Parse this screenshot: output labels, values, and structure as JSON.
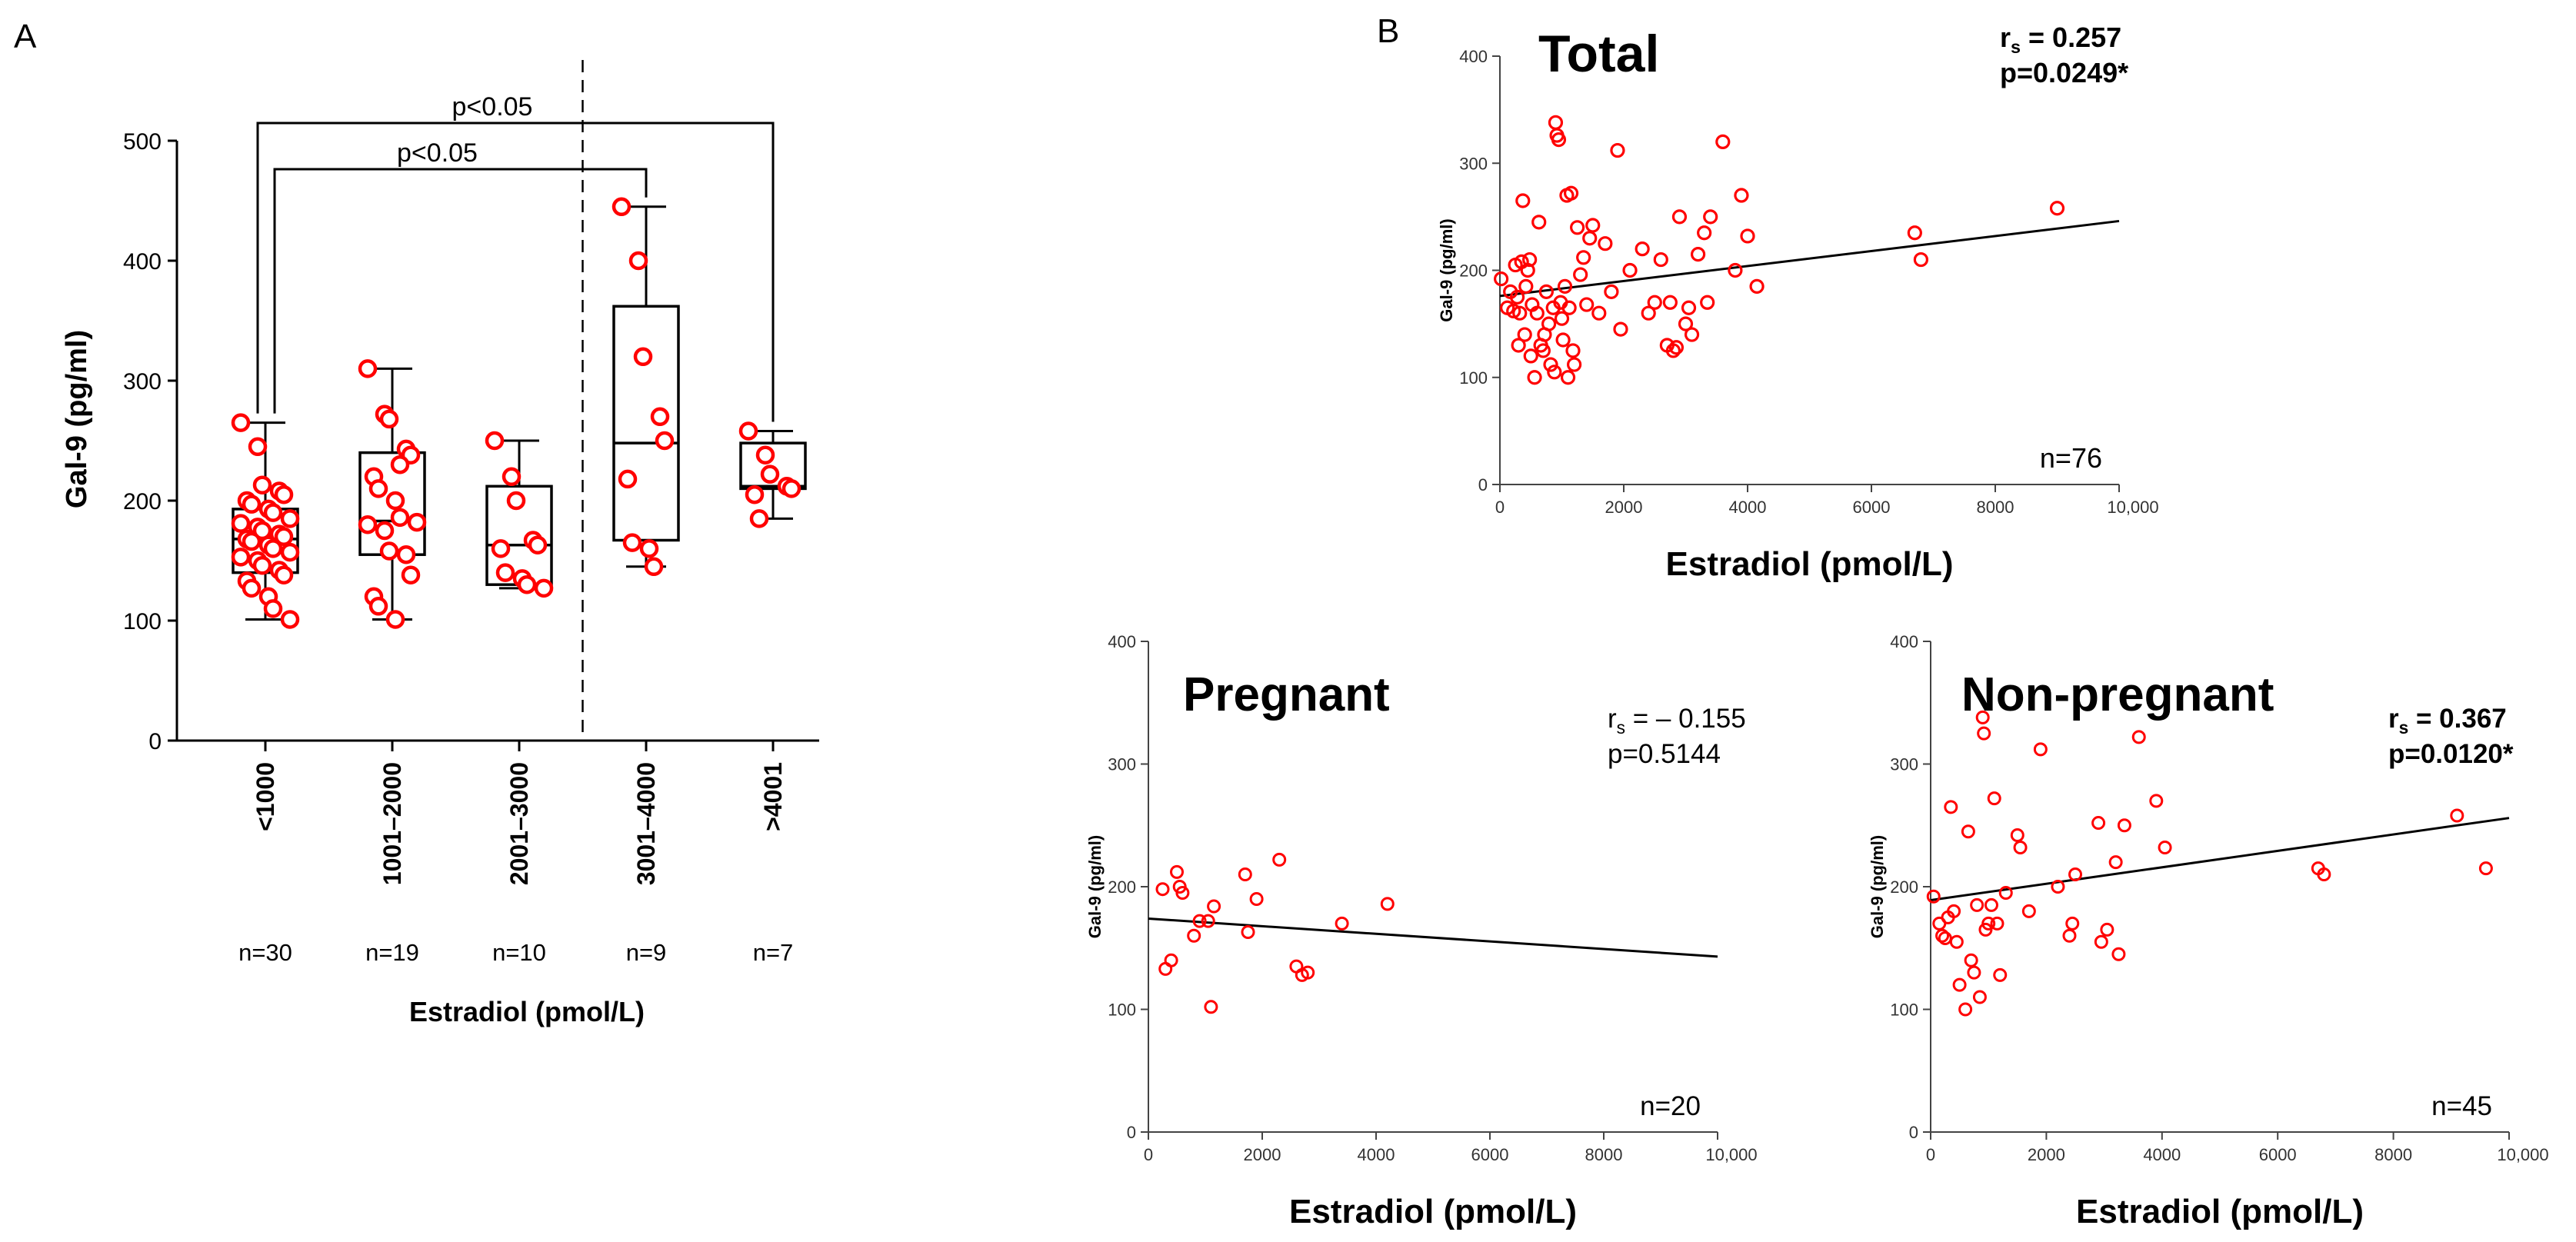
{
  "chart_data": [
    {
      "panel": "A",
      "type": "box",
      "ylabel": "Gal-9 (pg/ml)",
      "xlabel": "Estradiol (pmol/L)",
      "ylim": [
        0,
        500
      ],
      "yticks": [
        0,
        100,
        200,
        300,
        400,
        500
      ],
      "categories": [
        "<1000",
        "1001–2000",
        "2001–3000",
        "3001–4000",
        ">4001"
      ],
      "counts": [
        "n=30",
        "n=19",
        "n=10",
        "n=9",
        "n=7"
      ],
      "boxes": [
        {
          "min": 101,
          "q1": 140,
          "median": 168,
          "q3": 193,
          "max": 265
        },
        {
          "min": 101,
          "q1": 155,
          "median": 183,
          "q3": 240,
          "max": 310
        },
        {
          "min": 127,
          "q1": 130,
          "median": 163,
          "q3": 212,
          "max": 250
        },
        {
          "min": 145,
          "q1": 167,
          "median": 248,
          "q3": 362,
          "max": 445
        },
        {
          "min": 185,
          "q1": 210,
          "median": 212,
          "q3": 248,
          "max": 258
        }
      ],
      "points": [
        [
          265,
          245,
          213,
          208,
          205,
          200,
          197,
          193,
          190,
          185,
          181,
          178,
          175,
          172,
          170,
          168,
          166,
          163,
          160,
          157,
          153,
          150,
          146,
          142,
          138,
          133,
          127,
          120,
          110,
          101
        ],
        [
          310,
          272,
          268,
          243,
          238,
          220,
          210,
          200,
          186,
          182,
          180,
          175,
          158,
          155,
          138,
          120,
          112,
          101,
          230
        ],
        [
          250,
          220,
          200,
          167,
          163,
          160,
          140,
          135,
          130,
          127
        ],
        [
          445,
          400,
          320,
          270,
          250,
          218,
          165,
          160,
          145
        ],
        [
          258,
          238,
          222,
          212,
          210,
          205,
          185
        ]
      ],
      "significance": [
        {
          "label": "p<0.05",
          "from": 0,
          "to": 4
        },
        {
          "label": "p<0.05",
          "from": 0,
          "to": 3
        }
      ],
      "divider_between": [
        2,
        3
      ]
    },
    {
      "panel": "B",
      "type": "scatter",
      "title": "Total",
      "rs_label": "r",
      "rs_sub": "s",
      "rs_value": " = 0.257",
      "p_label": "p=0.0249*",
      "n_label": "n=76",
      "xlabel": "Estradiol (pmol/L)",
      "ylabel": "Gal-9 (pg/ml)",
      "xlim": [
        0,
        10000
      ],
      "ylim": [
        0,
        400
      ],
      "xticks": [
        "0",
        "2000",
        "4000",
        "6000",
        "8000",
        "10,000"
      ],
      "yticks": [
        "0",
        "100",
        "200",
        "300",
        "400"
      ],
      "fit": {
        "x0": 0,
        "y0": 176,
        "x1": 10000,
        "y1": 246
      },
      "points": [
        [
          20,
          192
        ],
        [
          120,
          165
        ],
        [
          170,
          180
        ],
        [
          220,
          162
        ],
        [
          250,
          205
        ],
        [
          280,
          175
        ],
        [
          300,
          130
        ],
        [
          320,
          160
        ],
        [
          350,
          208
        ],
        [
          370,
          265
        ],
        [
          400,
          140
        ],
        [
          420,
          185
        ],
        [
          450,
          200
        ],
        [
          480,
          210
        ],
        [
          500,
          120
        ],
        [
          520,
          168
        ],
        [
          560,
          100
        ],
        [
          600,
          160
        ],
        [
          630,
          245
        ],
        [
          660,
          130
        ],
        [
          700,
          125
        ],
        [
          720,
          140
        ],
        [
          750,
          180
        ],
        [
          790,
          150
        ],
        [
          820,
          112
        ],
        [
          860,
          165
        ],
        [
          880,
          105
        ],
        [
          900,
          338
        ],
        [
          920,
          326
        ],
        [
          950,
          322
        ],
        [
          980,
          170
        ],
        [
          1000,
          155
        ],
        [
          1020,
          135
        ],
        [
          1050,
          185
        ],
        [
          1080,
          270
        ],
        [
          1100,
          100
        ],
        [
          1120,
          165
        ],
        [
          1150,
          272
        ],
        [
          1180,
          125
        ],
        [
          1200,
          112
        ],
        [
          1250,
          240
        ],
        [
          1300,
          196
        ],
        [
          1350,
          212
        ],
        [
          1400,
          168
        ],
        [
          1450,
          230
        ],
        [
          1500,
          242
        ],
        [
          1600,
          160
        ],
        [
          1700,
          225
        ],
        [
          1800,
          180
        ],
        [
          1900,
          312
        ],
        [
          1950,
          145
        ],
        [
          2100,
          200
        ],
        [
          2300,
          220
        ],
        [
          2400,
          160
        ],
        [
          2500,
          170
        ],
        [
          2600,
          210
        ],
        [
          2700,
          130
        ],
        [
          2750,
          170
        ],
        [
          2800,
          125
        ],
        [
          2850,
          128
        ],
        [
          2900,
          250
        ],
        [
          3000,
          150
        ],
        [
          3050,
          165
        ],
        [
          3100,
          140
        ],
        [
          3200,
          215
        ],
        [
          3300,
          235
        ],
        [
          3350,
          170
        ],
        [
          3400,
          250
        ],
        [
          3600,
          320
        ],
        [
          3800,
          200
        ],
        [
          3900,
          270
        ],
        [
          4000,
          232
        ],
        [
          4150,
          185
        ],
        [
          6700,
          235
        ],
        [
          6800,
          210
        ],
        [
          9000,
          258
        ]
      ]
    },
    {
      "panel": "B-pregnant",
      "type": "scatter",
      "title": "Pregnant",
      "rs_label": "r",
      "rs_sub": "s",
      "rs_value": " = – 0.155",
      "p_label": "p=0.5144",
      "n_label": "n=20",
      "xlabel": "Estradiol (pmol/L)",
      "ylabel": "Gal-9 (pg/ml)",
      "xlim": [
        0,
        10000
      ],
      "ylim": [
        0,
        400
      ],
      "xticks": [
        "0",
        "2000",
        "4000",
        "6000",
        "8000",
        "10,000"
      ],
      "yticks": [
        "0",
        "100",
        "200",
        "300",
        "400"
      ],
      "fit": {
        "x0": 0,
        "y0": 174,
        "x1": 10000,
        "y1": 143
      },
      "points": [
        [
          250,
          198
        ],
        [
          300,
          133
        ],
        [
          400,
          140
        ],
        [
          500,
          212
        ],
        [
          550,
          200
        ],
        [
          800,
          160
        ],
        [
          900,
          172
        ],
        [
          1050,
          172
        ],
        [
          1100,
          102
        ],
        [
          1150,
          184
        ],
        [
          1700,
          210
        ],
        [
          1750,
          163
        ],
        [
          1900,
          190
        ],
        [
          2300,
          222
        ],
        [
          2600,
          135
        ],
        [
          2700,
          128
        ],
        [
          2800,
          130
        ],
        [
          3400,
          170
        ],
        [
          4200,
          186
        ],
        [
          600,
          195
        ]
      ]
    },
    {
      "panel": "B-nonpregnant",
      "type": "scatter",
      "title": "Non-pregnant",
      "rs_label": "r",
      "rs_sub": "s",
      "rs_value": " = 0.367",
      "p_label": "p=0.0120*",
      "n_label": "n=45",
      "xlabel": "Estradiol (pmol/L)",
      "ylabel": "Gal-9 (pg/ml)",
      "xlim": [
        0,
        10000
      ],
      "ylim": [
        0,
        400
      ],
      "xticks": [
        "0",
        "2000",
        "4000",
        "6000",
        "8000",
        "10,000"
      ],
      "yticks": [
        "0",
        "100",
        "200",
        "300",
        "400"
      ],
      "fit": {
        "x0": 0,
        "y0": 189,
        "x1": 10000,
        "y1": 256
      },
      "points": [
        [
          50,
          192
        ],
        [
          150,
          170
        ],
        [
          200,
          160
        ],
        [
          250,
          158
        ],
        [
          300,
          175
        ],
        [
          350,
          265
        ],
        [
          400,
          180
        ],
        [
          450,
          155
        ],
        [
          500,
          120
        ],
        [
          600,
          100
        ],
        [
          650,
          245
        ],
        [
          700,
          140
        ],
        [
          750,
          130
        ],
        [
          800,
          185
        ],
        [
          850,
          110
        ],
        [
          900,
          338
        ],
        [
          920,
          325
        ],
        [
          1000,
          170
        ],
        [
          1050,
          185
        ],
        [
          1100,
          272
        ],
        [
          1150,
          170
        ],
        [
          1200,
          128
        ],
        [
          1300,
          195
        ],
        [
          1500,
          242
        ],
        [
          1550,
          232
        ],
        [
          1900,
          312
        ],
        [
          2400,
          160
        ],
        [
          2450,
          170
        ],
        [
          2500,
          210
        ],
        [
          2900,
          252
        ],
        [
          2950,
          155
        ],
        [
          3050,
          165
        ],
        [
          3200,
          220
        ],
        [
          3250,
          145
        ],
        [
          3350,
          250
        ],
        [
          3600,
          322
        ],
        [
          3900,
          270
        ],
        [
          4050,
          232
        ],
        [
          6700,
          215
        ],
        [
          6800,
          210
        ],
        [
          9100,
          258
        ],
        [
          9600,
          215
        ],
        [
          1700,
          180
        ],
        [
          2200,
          200
        ],
        [
          950,
          165
        ]
      ]
    }
  ],
  "panel_labels": {
    "a": "A",
    "b": "B"
  },
  "colors": {
    "marker": "#ff0000",
    "line": "#000000"
  }
}
